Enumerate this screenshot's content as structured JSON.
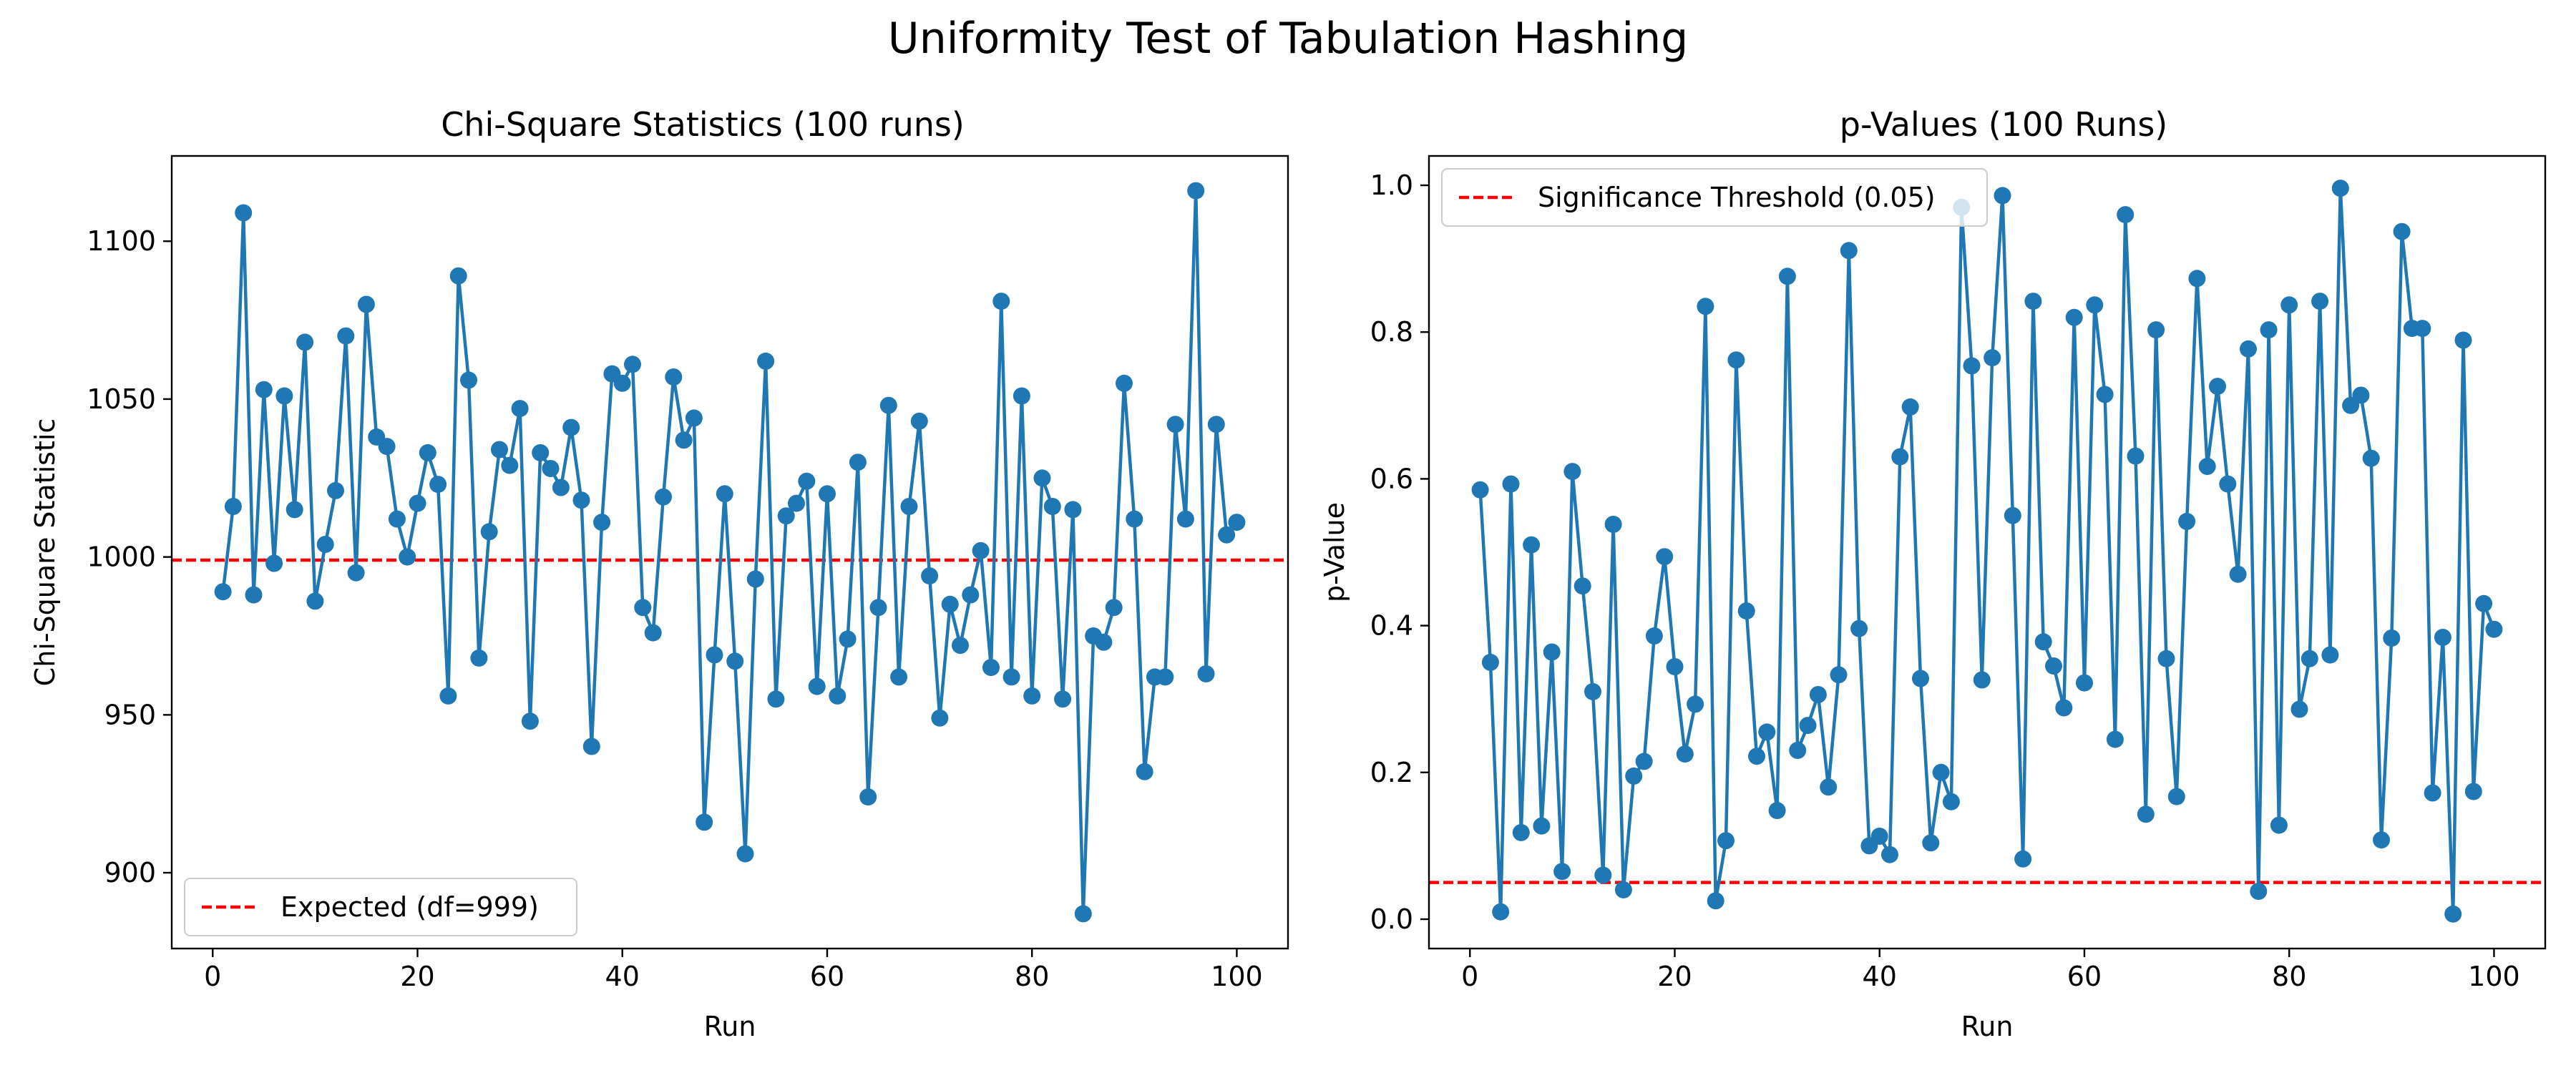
{
  "figure": {
    "title": "Uniformity Test of Tabulation Hashing"
  },
  "chart_data": [
    {
      "type": "line",
      "title": "Chi-Square Statistics (100 runs)",
      "xlabel": "Run",
      "ylabel": "Chi-Square Statistic",
      "xlim": [
        -4,
        105
      ],
      "ylim": [
        876,
        1127
      ],
      "xticks": [
        0,
        20,
        40,
        60,
        80,
        100
      ],
      "yticks": [
        900,
        950,
        1000,
        1050,
        1100
      ],
      "grid": false,
      "legend_position": "lower-left",
      "series": [
        {
          "color": "#1f77b4",
          "marker": "circle",
          "x": [
            1,
            2,
            3,
            4,
            5,
            6,
            7,
            8,
            9,
            10,
            11,
            12,
            13,
            14,
            15,
            16,
            17,
            18,
            19,
            20,
            21,
            22,
            23,
            24,
            25,
            26,
            27,
            28,
            29,
            30,
            31,
            32,
            33,
            34,
            35,
            36,
            37,
            38,
            39,
            40,
            41,
            42,
            43,
            44,
            45,
            46,
            47,
            48,
            49,
            50,
            51,
            52,
            53,
            54,
            55,
            56,
            57,
            58,
            59,
            60,
            61,
            62,
            63,
            64,
            65,
            66,
            67,
            68,
            69,
            70,
            71,
            72,
            73,
            74,
            75,
            76,
            77,
            78,
            79,
            80,
            81,
            82,
            83,
            84,
            85,
            86,
            87,
            88,
            89,
            90,
            91,
            92,
            93,
            94,
            95,
            96,
            97,
            98,
            99,
            100
          ],
          "values": [
            989,
            1016,
            1109,
            988,
            1053,
            998,
            1051,
            1015,
            1068,
            986,
            1004,
            1021,
            1070,
            995,
            1080,
            1038,
            1035,
            1012,
            1000,
            1017,
            1033,
            1023,
            956,
            1089,
            1056,
            968,
            1008,
            1034,
            1029,
            1047,
            948,
            1033,
            1028,
            1022,
            1041,
            1018,
            940,
            1011,
            1058,
            1055,
            1061,
            984,
            976,
            1019,
            1057,
            1037,
            1044,
            916,
            969,
            1020,
            967,
            906,
            993,
            1062,
            955,
            1013,
            1017,
            1024,
            959,
            1020,
            956,
            974,
            1030,
            924,
            984,
            1048,
            962,
            1016,
            1043,
            994,
            949,
            985,
            972,
            988,
            1002,
            965,
            1081,
            962,
            1051,
            956,
            1025,
            1016,
            955,
            1015,
            887,
            975,
            973,
            984,
            1055,
            1012,
            932,
            962,
            962,
            1042,
            1012,
            1116,
            963,
            1042,
            1007,
            1011
          ]
        },
        {
          "name": "Expected (df=999)",
          "color": "#ff0000",
          "style": "dashed",
          "y": 999
        }
      ]
    },
    {
      "type": "line",
      "title": "p-Values (100 Runs)",
      "xlabel": "Run",
      "ylabel": "p-Value",
      "xlim": [
        -4,
        105
      ],
      "ylim": [
        -0.04,
        1.04
      ],
      "xticks": [
        0,
        20,
        40,
        60,
        80,
        100
      ],
      "yticks": [
        "0.0",
        "0.2",
        "0.4",
        "0.6",
        "0.8",
        "1.0"
      ],
      "grid": false,
      "legend_position": "upper-left",
      "series": [
        {
          "color": "#1f77b4",
          "marker": "circle",
          "x": [
            1,
            2,
            3,
            4,
            5,
            6,
            7,
            8,
            9,
            10,
            11,
            12,
            13,
            14,
            15,
            16,
            17,
            18,
            19,
            20,
            21,
            22,
            23,
            24,
            25,
            26,
            27,
            28,
            29,
            30,
            31,
            32,
            33,
            34,
            35,
            36,
            37,
            38,
            39,
            40,
            41,
            42,
            43,
            44,
            45,
            46,
            47,
            48,
            49,
            50,
            51,
            52,
            53,
            54,
            55,
            56,
            57,
            58,
            59,
            60,
            61,
            62,
            63,
            64,
            65,
            66,
            67,
            68,
            69,
            70,
            71,
            72,
            73,
            74,
            75,
            76,
            77,
            78,
            79,
            80,
            81,
            82,
            83,
            84,
            85,
            86,
            87,
            88,
            89,
            90,
            91,
            92,
            93,
            94,
            95,
            96,
            97,
            98,
            99,
            100
          ],
          "values": [
            0.585,
            0.35,
            0.01,
            0.593,
            0.118,
            0.51,
            0.127,
            0.364,
            0.065,
            0.61,
            0.454,
            0.31,
            0.06,
            0.538,
            0.04,
            0.195,
            0.215,
            0.386,
            0.494,
            0.344,
            0.225,
            0.293,
            0.835,
            0.025,
            0.107,
            0.762,
            0.42,
            0.222,
            0.255,
            0.148,
            0.876,
            0.23,
            0.264,
            0.306,
            0.18,
            0.333,
            0.911,
            0.396,
            0.1,
            0.113,
            0.088,
            0.63,
            0.698,
            0.328,
            0.104,
            0.2,
            0.16,
            0.97,
            0.754,
            0.326,
            0.765,
            0.986,
            0.55,
            0.082,
            0.842,
            0.378,
            0.345,
            0.288,
            0.82,
            0.322,
            0.837,
            0.715,
            0.245,
            0.96,
            0.631,
            0.143,
            0.803,
            0.355,
            0.167,
            0.542,
            0.873,
            0.617,
            0.726,
            0.593,
            0.47,
            0.777,
            0.038,
            0.803,
            0.128,
            0.837,
            0.286,
            0.355,
            0.842,
            0.36,
            0.996,
            0.7,
            0.714,
            0.628,
            0.108,
            0.383,
            0.937,
            0.805,
            0.805,
            0.172,
            0.384,
            0.007,
            0.789,
            0.174,
            0.43,
            0.395
          ]
        },
        {
          "name": "Significance Threshold (0.05)",
          "color": "#ff0000",
          "style": "dashed",
          "y": 0.05
        }
      ]
    }
  ]
}
